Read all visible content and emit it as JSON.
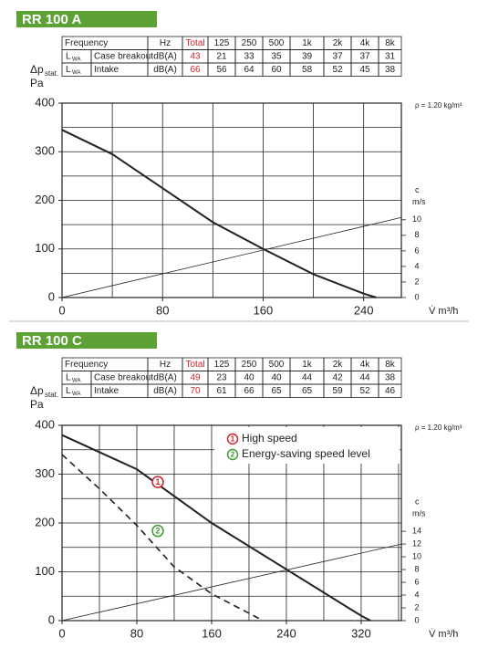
{
  "chart_data": [
    {
      "type": "line",
      "title": "RR 100 A",
      "table": {
        "header": [
          "Frequency",
          "Hz",
          "Total",
          "125",
          "250",
          "500",
          "1k",
          "2k",
          "4k",
          "8k"
        ],
        "rows": [
          {
            "symbol": "L",
            "symbol_sub": "WA",
            "name": "Case breakout",
            "unit": "dB(A)",
            "total": 43,
            "values": [
              21,
              33,
              35,
              39,
              37,
              37,
              31
            ]
          },
          {
            "symbol": "L",
            "symbol_sub": "WA",
            "name": "Intake",
            "unit": "dB(A)",
            "total": 66,
            "values": [
              56,
              64,
              60,
              58,
              52,
              45,
              38
            ]
          }
        ]
      },
      "y_label": "Δp",
      "y_label_sub": "stat.",
      "y_unit": "Pa",
      "y2_label": "c",
      "y2_unit": "m/s",
      "x_label": "V̇ m³/h",
      "density": "ρ = 1.20 kg/m³",
      "xlim": [
        0,
        270
      ],
      "xticks": [
        0,
        80,
        160,
        240
      ],
      "xgrid": [
        40,
        80,
        120,
        160,
        200,
        240
      ],
      "ylim": [
        0,
        400
      ],
      "yticks": [
        0,
        100,
        200,
        300,
        400
      ],
      "ygrid": [
        50,
        100,
        150,
        200,
        250,
        300,
        350
      ],
      "y2lim": [
        0,
        25
      ],
      "y2ticks": [
        0,
        2,
        4,
        6,
        8,
        10
      ],
      "series": [
        {
          "color": "#222222",
          "line_width": 2,
          "x": [
            0,
            40,
            80,
            120,
            160,
            200,
            240,
            250
          ],
          "values": [
            345,
            295,
            225,
            155,
            100,
            48,
            8,
            0
          ]
        },
        {
          "axis": "y2",
          "color": "#222222",
          "line_width": 0.8,
          "x": [
            0,
            270
          ],
          "values": [
            0,
            10.3
          ]
        }
      ]
    },
    {
      "type": "line",
      "title": "RR 100 C",
      "table": {
        "header": [
          "Frequency",
          "Hz",
          "Total",
          "125",
          "250",
          "500",
          "1k",
          "2k",
          "4k",
          "8k"
        ],
        "rows": [
          {
            "symbol": "L",
            "symbol_sub": "WA",
            "name": "Case breakout",
            "unit": "dB(A)",
            "total": 49,
            "values": [
              23,
              40,
              40,
              44,
              42,
              44,
              38
            ]
          },
          {
            "symbol": "L",
            "symbol_sub": "WA",
            "name": "Intake",
            "unit": "dB(A)",
            "total": 70,
            "values": [
              61,
              66,
              65,
              65,
              59,
              52,
              46
            ]
          }
        ]
      },
      "y_label": "Δp",
      "y_label_sub": "stat.",
      "y_unit": "Pa",
      "y2_label": "c",
      "y2_unit": "m/s",
      "x_label": "V̇ m³/h",
      "density": "ρ = 1.20 kg/m³",
      "xlim": [
        0,
        363
      ],
      "xticks": [
        0,
        80,
        160,
        240,
        320
      ],
      "xgrid": [
        40,
        80,
        120,
        160,
        200,
        240,
        280,
        320,
        360
      ],
      "ylim": [
        0,
        400
      ],
      "yticks": [
        0,
        100,
        200,
        300,
        400
      ],
      "ygrid": [
        50,
        100,
        150,
        200,
        250,
        300,
        350
      ],
      "y2lim": [
        0,
        30.6
      ],
      "y2ticks": [
        0,
        2,
        4,
        6,
        8,
        10,
        12,
        14
      ],
      "series": [
        {
          "name": "High speed",
          "label": "1",
          "label_color": "#d2232a",
          "color": "#222222",
          "line_width": 2,
          "x": [
            0,
            80,
            160,
            240,
            320,
            330
          ],
          "values": [
            380,
            310,
            200,
            105,
            10,
            0
          ]
        },
        {
          "name": "Energy-saving speed level",
          "label": "2",
          "label_color": "#3f9a2f",
          "color": "#222222",
          "line_width": 1.6,
          "dash": true,
          "x": [
            0,
            40,
            80,
            120,
            160,
            200,
            215
          ],
          "values": [
            340,
            270,
            195,
            110,
            55,
            15,
            0
          ]
        },
        {
          "axis": "y2",
          "color": "#222222",
          "line_width": 0.8,
          "x": [
            0,
            363
          ],
          "values": [
            0,
            12
          ]
        }
      ]
    }
  ]
}
